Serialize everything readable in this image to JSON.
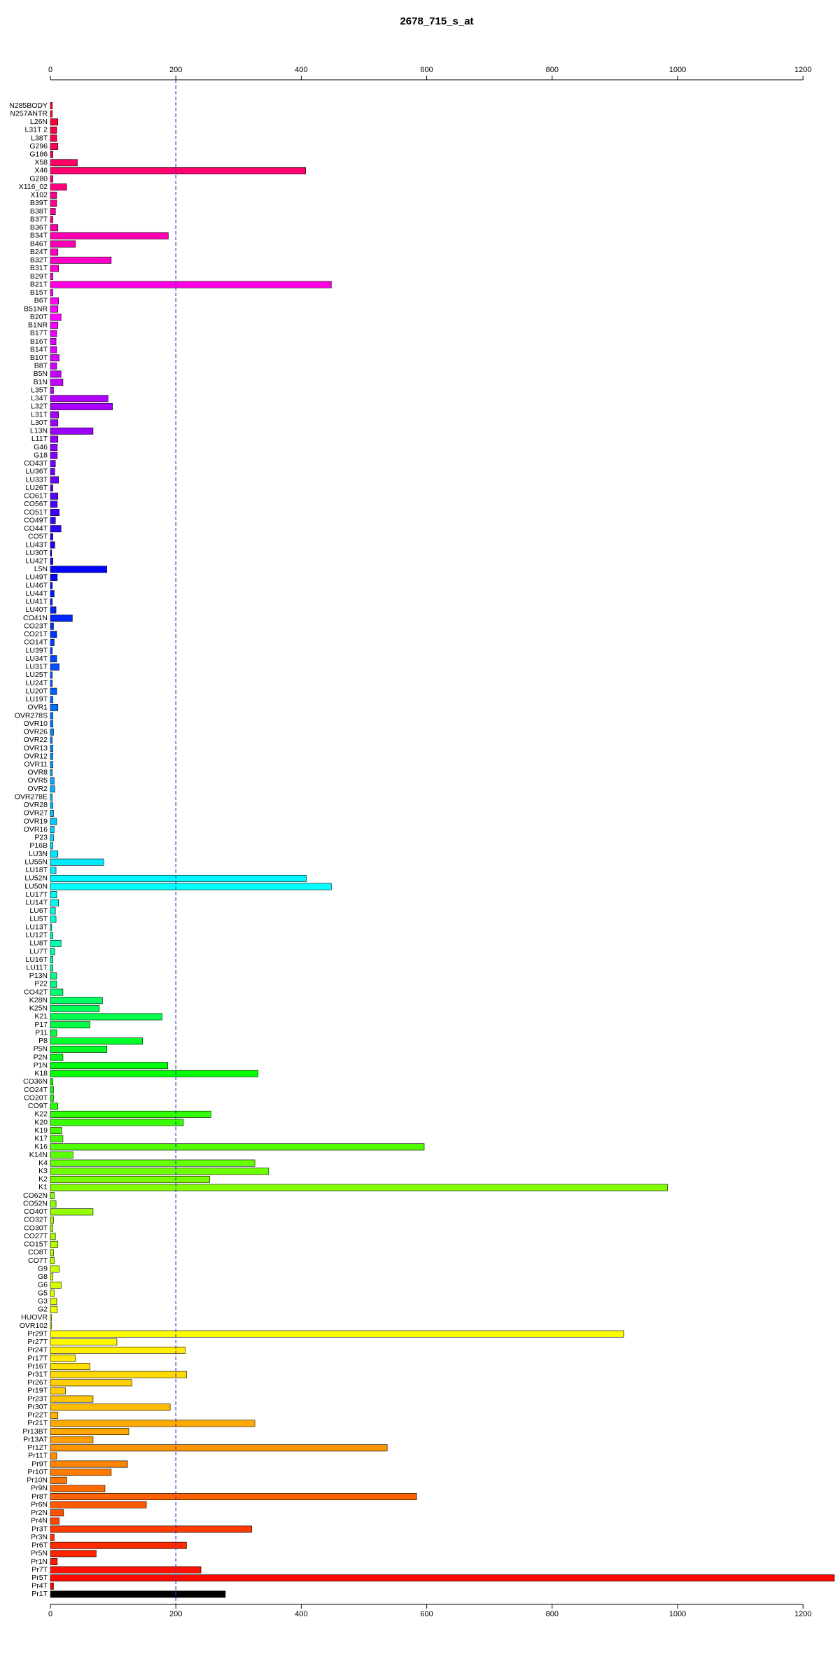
{
  "chart_data": {
    "type": "bar",
    "orientation": "horizontal",
    "title": "2678_715_s_at",
    "categories": [
      "N285BODY",
      "N257ANTR",
      "L26N",
      "L31T 2",
      "L38T",
      "G296",
      "G186",
      "X58",
      "X46",
      "G280",
      "X116_02",
      "X102",
      "B39T",
      "B38T",
      "B37T",
      "B36T",
      "B34T",
      "B46T",
      "B24T",
      "B32T",
      "B31T",
      "B29T",
      "B21T",
      "B15T",
      "B6T",
      "B51NR",
      "B20T",
      "B1NR",
      "B17T",
      "B16T",
      "B14T",
      "B10T",
      "B8T",
      "B5N",
      "B1N",
      "L35T",
      "L34T",
      "L32T",
      "L31T",
      "L30T",
      "L13N",
      "L11T",
      "G46",
      "G18",
      "CO43T",
      "LU36T",
      "LU33T",
      "LU26T",
      "CO61T",
      "CO56T",
      "CO51T",
      "CO49T",
      "CO44T",
      "CO5T",
      "LU43T",
      "LU30T",
      "LU42T",
      "L5N",
      "LU49T",
      "LU46T",
      "LU44T",
      "LU41T",
      "LU40T",
      "CO41N",
      "CO23T",
      "CO21T",
      "CO14T",
      "LU39T",
      "LU34T",
      "LU31T",
      "LU25T",
      "LU24T",
      "LU20T",
      "LU19T",
      "OVR1",
      "OVR278S",
      "OVR10",
      "OVR26",
      "OVR22",
      "OVR13",
      "OVR12",
      "OVR11",
      "OVR8",
      "OVR5",
      "OVR2",
      "OVR278E",
      "OVR28",
      "OVR27",
      "OVR19",
      "OVR16",
      "P23",
      "P16B",
      "LU3N",
      "LU55N",
      "LU18T",
      "LU52N",
      "LU50N",
      "LU17T",
      "LU14T",
      "LU6T",
      "LU5T",
      "LU13T",
      "LU12T",
      "LU8T",
      "LU7T",
      "LU16T",
      "LU11T",
      "P13N",
      "P22",
      "CO42T",
      "K28N",
      "K25N",
      "K21",
      "P17",
      "P11",
      "P8",
      "P5N",
      "P2N",
      "P1N",
      "K18",
      "CO36N",
      "CO24T",
      "CO20T",
      "CO9T",
      "K22",
      "K20",
      "K19",
      "K17",
      "K16",
      "K14N",
      "K4",
      "K3",
      "K2",
      "K1",
      "CO62N",
      "CO52N",
      "CO40T",
      "CO32T",
      "CO30T",
      "CO27T",
      "CO15T",
      "CO8T",
      "CO7T",
      "G9",
      "G8",
      "G6",
      "G5",
      "G3",
      "G2",
      "HUOVR",
      "OVR102",
      "Pr29T",
      "Pr27T",
      "Pr24T",
      "Pr17T",
      "Pr16T",
      "Pr31T",
      "Pr26T",
      "Pr19T",
      "Pr23T",
      "Pr30T",
      "Pr22T",
      "Pr21T",
      "Pr13BT",
      "Pr13AT",
      "Pr12T",
      "Pr11T",
      "Pr9T",
      "Pr10T",
      "Pr10N",
      "Pr9N",
      "Pr8T",
      "Pr6N",
      "Pr2N",
      "Pr4N",
      "Pr3T",
      "Pr3N",
      "Pr6T",
      "Pr5N",
      "Pr1N",
      "Pr7T",
      "Pr5T",
      "Pr4T",
      "Pr1T"
    ],
    "values": [
      3,
      3,
      12,
      10,
      10,
      12,
      4,
      43,
      407,
      4,
      26,
      10,
      10,
      8,
      4,
      12,
      188,
      40,
      12,
      97,
      13,
      4,
      448,
      4,
      13,
      12,
      17,
      12,
      10,
      9,
      10,
      14,
      10,
      17,
      20,
      5,
      92,
      99,
      13,
      12,
      68,
      12,
      11,
      11,
      8,
      7,
      13,
      4,
      12,
      11,
      14,
      8,
      17,
      4,
      7,
      2,
      4,
      90,
      11,
      3,
      6,
      3,
      9,
      35,
      5,
      10,
      6,
      3,
      10,
      14,
      3,
      3,
      10,
      4,
      12,
      4,
      4,
      5,
      3,
      4,
      4,
      4,
      3,
      6,
      7,
      3,
      4,
      5,
      10,
      6,
      5,
      4,
      12,
      85,
      9,
      408,
      448,
      10,
      13,
      8,
      9,
      2,
      4,
      17,
      7,
      4,
      4,
      10,
      10,
      20,
      83,
      78,
      178,
      63,
      10,
      147,
      90,
      20,
      187,
      331,
      4,
      5,
      5,
      12,
      256,
      212,
      18,
      20,
      596,
      36,
      326,
      348,
      254,
      984,
      6,
      9,
      68,
      5,
      4,
      8,
      12,
      5,
      6,
      14,
      4,
      17,
      6,
      10,
      11,
      2,
      2,
      914,
      106,
      215,
      40,
      63,
      217,
      130,
      24,
      68,
      191,
      12,
      326,
      125,
      68,
      537,
      10,
      123,
      97,
      26,
      87,
      584,
      153,
      21,
      14,
      321,
      6,
      217,
      73,
      11,
      240,
      1250,
      5,
      279
    ],
    "colors": [
      "hsl(350,100%,50%)",
      "hsl(348,100%,50%)",
      "hsl(346,100%,50%)",
      "hsl(344,100%,50%)",
      "hsl(342,100%,50%)",
      "hsl(340,100%,50%)",
      "hsl(338,100%,50%)",
      "hsl(336,100%,50%)",
      "hsl(334,100%,50%)",
      "hsl(332,100%,50%)",
      "hsl(330,100%,50%)",
      "hsl(328,100%,50%)",
      "hsl(326,100%,50%)",
      "hsl(324,100%,50%)",
      "hsl(323,100%,50%)",
      "hsl(321,100%,50%)",
      "hsl(319,100%,50%)",
      "hsl(317,100%,50%)",
      "hsl(315,100%,50%)",
      "hsl(313,100%,50%)",
      "hsl(311,100%,50%)",
      "hsl(309,100%,50%)",
      "hsl(307,100%,50%)",
      "hsl(305,100%,50%)",
      "hsl(303,100%,50%)",
      "hsl(301,100%,50%)",
      "hsl(300,100%,50%)",
      "hsl(298,100%,50%)",
      "hsl(296,100%,50%)",
      "hsl(294,100%,50%)",
      "hsl(293,100%,50%)",
      "hsl(291,100%,50%)",
      "hsl(289,100%,50%)",
      "hsl(287,100%,50%)",
      "hsl(286,100%,50%)",
      "hsl(284,100%,50%)",
      "hsl(282,100%,50%)",
      "hsl(280,100%,50%)",
      "hsl(279,100%,50%)",
      "hsl(277,100%,50%)",
      "hsl(276,100%,50%)",
      "hsl(275,100%,50%)",
      "hsl(273,100%,50%)",
      "hsl(271,100%,50%)",
      "hsl(268,100%,50%)",
      "hsl(266,100%,50%)",
      "hsl(264,100%,50%)",
      "hsl(262,100%,50%)",
      "hsl(260,100%,50%)",
      "hsl(257,100%,50%)",
      "hsl(255,100%,50%)",
      "hsl(253,100%,50%)",
      "hsl(251,100%,50%)",
      "hsl(249,100%,50%)",
      "hsl(247,100%,50%)",
      "hsl(244,100%,50%)",
      "hsl(242,100%,50%)",
      "hsl(240,100%,50%)",
      "hsl(238,100%,50%)",
      "hsl(237,100%,50%)",
      "hsl(235,100%,50%)",
      "hsl(234,100%,50%)",
      "hsl(232,100%,50%)",
      "hsl(231,100%,50%)",
      "hsl(229,100%,50%)",
      "hsl(228,100%,50%)",
      "hsl(226,100%,50%)",
      "hsl(225,100%,50%)",
      "hsl(223,100%,50%)",
      "hsl(222,100%,50%)",
      "hsl(220,100%,50%)",
      "hsl(218,100%,50%)",
      "hsl(217,100%,50%)",
      "hsl(215,100%,50%)",
      "hsl(214,100%,50%)",
      "hsl(212,100%,50%)",
      "hsl(211,100%,50%)",
      "hsl(209,100%,50%)",
      "hsl(208,100%,50%)",
      "hsl(206,100%,50%)",
      "hsl(205,100%,50%)",
      "hsl(203,100%,50%)",
      "hsl(202,100%,50%)",
      "hsl(200,100%,50%)",
      "hsl(198,100%,50%)",
      "hsl(197,100%,50%)",
      "hsl(195,100%,50%)",
      "hsl(194,100%,50%)",
      "hsl(192,100%,50%)",
      "hsl(191,100%,50%)",
      "hsl(189,100%,50%)",
      "hsl(188,100%,50%)",
      "hsl(186,100%,50%)",
      "hsl(185,100%,50%)",
      "hsl(183,100%,50%)",
      "hsl(182,100%,50%)",
      "hsl(180,100%,50%)",
      "hsl(177,100%,50%)",
      "hsl(175,100%,50%)",
      "hsl(172,100%,50%)",
      "hsl(170,100%,50%)",
      "hsl(167,100%,50%)",
      "hsl(164,100%,50%)",
      "hsl(162,100%,50%)",
      "hsl(159,100%,50%)",
      "hsl(157,100%,50%)",
      "hsl(154,100%,50%)",
      "hsl(151,100%,50%)",
      "hsl(149,100%,50%)",
      "hsl(146,100%,50%)",
      "hsl(143,100%,50%)",
      "hsl(141,100%,50%)",
      "hsl(138,100%,50%)",
      "hsl(136,100%,50%)",
      "hsl(133,100%,50%)",
      "hsl(130,100%,50%)",
      "hsl(128,100%,50%)",
      "hsl(125,100%,50%)",
      "hsl(123,100%,50%)",
      "hsl(120,100%,50%)",
      "hsl(118,100%,50%)",
      "hsl(116,100%,50%)",
      "hsl(114,100%,50%)",
      "hsl(111,100%,50%)",
      "hsl(109,100%,50%)",
      "hsl(107,100%,50%)",
      "hsl(105,100%,50%)",
      "hsl(103,100%,50%)",
      "hsl(101,100%,50%)",
      "hsl(99,100%,50%)",
      "hsl(96,100%,50%)",
      "hsl(94,100%,50%)",
      "hsl(92,100%,50%)",
      "hsl(90,100%,50%)",
      "hsl(88,100%,50%)",
      "hsl(87,100%,50%)",
      "hsl(85,100%,50%)",
      "hsl(83,100%,50%)",
      "hsl(82,100%,50%)",
      "hsl(80,100%,50%)",
      "hsl(78,100%,50%)",
      "hsl(77,100%,50%)",
      "hsl(75,100%,50%)",
      "hsl(73,100%,50%)",
      "hsl(72,100%,50%)",
      "hsl(70,100%,50%)",
      "hsl(68,100%,50%)",
      "hsl(67,100%,50%)",
      "hsl(65,100%,50%)",
      "hsl(63,100%,50%)",
      "hsl(62,100%,50%)",
      "hsl(60,100%,50%)",
      "hsl(58,100%,50%)",
      "hsl(56,100%,50%)",
      "hsl(55,100%,50%)",
      "hsl(53,100%,50%)",
      "hsl(51,100%,50%)",
      "hsl(49,100%,50%)",
      "hsl(48,100%,50%)",
      "hsl(46,100%,50%)",
      "hsl(44,100%,50%)",
      "hsl(42,100%,50%)",
      "hsl(40,100%,50%)",
      "hsl(39,100%,50%)",
      "hsl(37,100%,50%)",
      "hsl(35,100%,50%)",
      "hsl(33,100%,50%)",
      "hsl(31,100%,50%)",
      "hsl(29,100%,50%)",
      "hsl(27,100%,50%)",
      "hsl(25,100%,50%)",
      "hsl(23,100%,50%)",
      "hsl(21,100%,50%)",
      "hsl(19,100%,50%)",
      "hsl(16,100%,50%)",
      "hsl(14,100%,50%)",
      "hsl(12,100%,50%)",
      "hsl(10,100%,50%)",
      "hsl(8,100%,50%)",
      "hsl(6,100%,50%)",
      "hsl(4,100%,50%)",
      "hsl(2,100%,50%)",
      "hsl(0,100%,50%)"
    ],
    "xlim": [
      0,
      1250
    ],
    "xticks": [
      0,
      200,
      400,
      600,
      800,
      1000,
      1200
    ],
    "reference_line": 200,
    "reference_line_color": "#3333cc"
  }
}
